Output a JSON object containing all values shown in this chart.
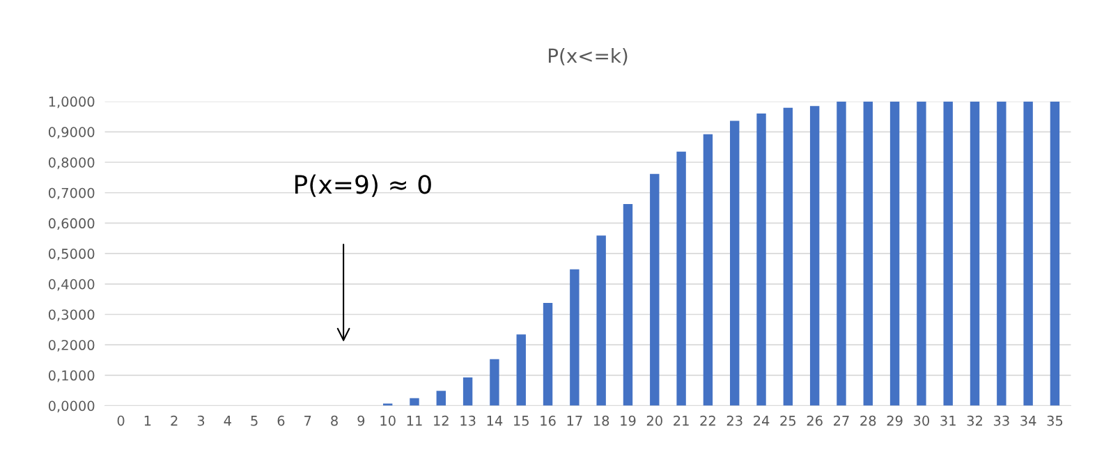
{
  "chart_data": {
    "type": "bar",
    "title": "P(x<=k)",
    "categories": [
      "0",
      "1",
      "2",
      "3",
      "4",
      "5",
      "6",
      "7",
      "8",
      "9",
      "10",
      "11",
      "12",
      "13",
      "14",
      "15",
      "16",
      "17",
      "18",
      "19",
      "20",
      "21",
      "22",
      "23",
      "24",
      "25",
      "26",
      "27",
      "28",
      "29",
      "30",
      "31",
      "32",
      "33",
      "34",
      "35"
    ],
    "values": [
      0,
      0,
      0,
      0,
      0,
      0,
      0,
      0,
      0,
      0,
      0.007,
      0.025,
      0.049,
      0.093,
      0.153,
      0.234,
      0.338,
      0.448,
      0.559,
      0.663,
      0.762,
      0.835,
      0.892,
      0.936,
      0.96,
      0.979,
      0.985,
      1,
      1,
      1,
      1,
      1,
      1,
      1,
      1,
      1
    ],
    "color": "#4472c4",
    "ylim": [
      0,
      1
    ],
    "yticks": [
      {
        "value": 0,
        "label": "0,0000"
      },
      {
        "value": 0.1,
        "label": "0,1000"
      },
      {
        "value": 0.2,
        "label": "0,2000"
      },
      {
        "value": 0.3,
        "label": "0,3000"
      },
      {
        "value": 0.4,
        "label": "0,4000"
      },
      {
        "value": 0.5,
        "label": "0,5000"
      },
      {
        "value": 0.6,
        "label": "0,6000"
      },
      {
        "value": 0.7,
        "label": "0,7000"
      },
      {
        "value": 0.8,
        "label": "0,8000"
      },
      {
        "value": 0.9,
        "label": "0,9000"
      },
      {
        "value": 1,
        "label": "1,0000"
      }
    ],
    "grid": "y",
    "annotations": [
      "P(x=9) ≈ 0"
    ]
  }
}
